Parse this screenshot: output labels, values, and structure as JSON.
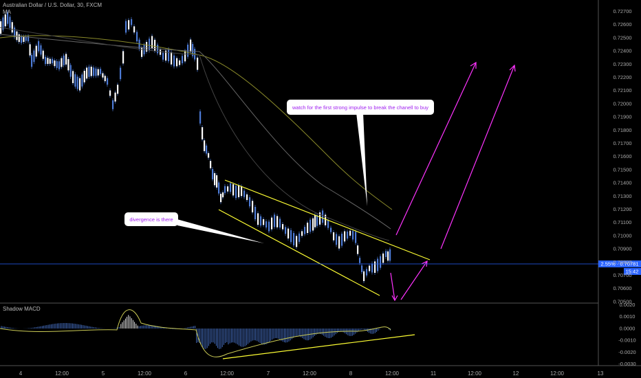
{
  "header": {
    "symbol_line": "Australian Dollar / U.S. Dollar, 30, FXCM",
    "indicator": "MA"
  },
  "macd_label": "Shadow MACD",
  "price_axis": {
    "labels": [
      "0.72700",
      "0.72600",
      "0.72500",
      "0.72400",
      "0.72300",
      "0.72200",
      "0.72100",
      "0.72000",
      "0.71900",
      "0.71800",
      "0.71700",
      "0.71600",
      "0.71500",
      "0.71400",
      "0.71300",
      "0.71200",
      "0.71100",
      "0.71000",
      "0.70900",
      "0.70800",
      "0.70700",
      "0.70600",
      "0.70500"
    ]
  },
  "current_price": {
    "label": "2.55% · 0.70781",
    "timer": "15:42",
    "color": "#2962ff"
  },
  "macd_axis": {
    "labels": [
      "0.0020",
      "0.0010",
      "0.0000",
      "-0.0010",
      "-0.0020",
      "-0.0030"
    ]
  },
  "time_axis": {
    "labels": [
      "4",
      "12:00",
      "5",
      "12:00",
      "6",
      "12:00",
      "7",
      "12:00",
      "8",
      "12:00",
      "11",
      "12:00",
      "12",
      "12:00",
      "13"
    ]
  },
  "annotations": {
    "divergence": "divergence is there",
    "watch": "watch for the first strong impulse to break the chanell to buy"
  },
  "colors": {
    "bull": "#4d7bd6",
    "bear": "#4d7bd6",
    "yellow": "#ffff33",
    "magenta": "#ff33ff",
    "note_text": "#a020f0"
  }
}
